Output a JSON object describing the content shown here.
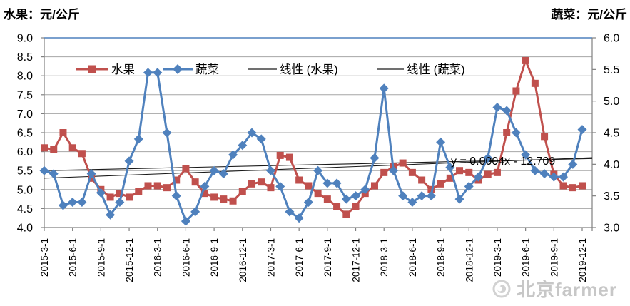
{
  "titles": {
    "left_axis_title": "水果：元/公斤",
    "right_axis_title": "蔬菜：元/公斤"
  },
  "legend": {
    "items": [
      {
        "label": "水果",
        "marker": "square",
        "color": "#C0504D"
      },
      {
        "label": "蔬菜",
        "marker": "diamond",
        "color": "#4F81BD"
      },
      {
        "label": "线性 (水果)",
        "marker": "line",
        "color": "#1a1a1a"
      },
      {
        "label": "线性 (蔬菜)",
        "marker": "line",
        "color": "#1a1a1a"
      }
    ]
  },
  "watermark": {
    "text": "北京farmer",
    "icon": "weibo-eye-icon"
  },
  "colors": {
    "fruit": "#C0504D",
    "vegetable": "#4F81BD",
    "gridline": "#A6A6A6",
    "axis": "#808080",
    "top_border": "#4F81BD",
    "trendline": "#1a1a1a"
  },
  "chart_data": {
    "type": "line",
    "title": "",
    "xlabel": "",
    "ylabel_left": "水果：元/公斤",
    "ylabel_right": "蔬菜：元/公斤",
    "grid": true,
    "legend_position": "top-inside",
    "x": [
      "2015-3",
      "2015-4",
      "2015-5",
      "2015-6",
      "2015-7",
      "2015-8",
      "2015-9",
      "2015-10",
      "2015-11",
      "2015-12",
      "2016-1",
      "2016-2",
      "2016-3",
      "2016-4",
      "2016-5",
      "2016-6",
      "2016-7",
      "2016-8",
      "2016-9",
      "2016-10",
      "2016-11",
      "2016-12",
      "2017-1",
      "2017-2",
      "2017-3",
      "2017-4",
      "2017-5",
      "2017-6",
      "2017-7",
      "2017-8",
      "2017-9",
      "2017-10",
      "2017-11",
      "2017-12",
      "2018-1",
      "2018-2",
      "2018-3",
      "2018-4",
      "2018-5",
      "2018-6",
      "2018-7",
      "2018-8",
      "2018-9",
      "2018-10",
      "2018-11",
      "2018-12",
      "2019-1",
      "2019-2",
      "2019-3",
      "2019-4",
      "2019-5",
      "2019-6",
      "2019-7",
      "2019-8",
      "2019-9",
      "2019-10",
      "2019-11",
      "2019-12"
    ],
    "x_tick_labels": [
      "2015-3-1",
      "2015-6-1",
      "2015-9-1",
      "2015-12-1",
      "2016-3-1",
      "2016-6-1",
      "2016-9-1",
      "2016-12-1",
      "2017-3-1",
      "2017-6-1",
      "2017-9-1",
      "2017-12-1",
      "2018-3-1",
      "2018-6-1",
      "2018-9-1",
      "2018-12-1",
      "2019-3-1",
      "2019-6-1",
      "2019-9-1",
      "2019-12-1"
    ],
    "series": [
      {
        "name": "水果",
        "axis": "left",
        "color": "#C0504D",
        "marker": "square",
        "values": [
          6.1,
          6.05,
          6.5,
          6.1,
          5.95,
          5.3,
          5.0,
          4.8,
          4.9,
          4.8,
          4.95,
          5.1,
          5.1,
          5.05,
          5.25,
          5.55,
          5.2,
          4.9,
          4.8,
          4.75,
          4.7,
          4.95,
          5.15,
          5.2,
          5.05,
          5.9,
          5.85,
          5.25,
          5.1,
          4.9,
          4.75,
          4.55,
          4.35,
          4.55,
          4.9,
          5.1,
          5.45,
          5.6,
          5.7,
          5.45,
          5.25,
          5.0,
          5.15,
          5.3,
          5.5,
          5.45,
          5.25,
          5.4,
          5.45,
          6.5,
          7.6,
          8.4,
          7.8,
          6.4,
          5.4,
          5.1,
          5.05,
          5.1
        ]
      },
      {
        "name": "蔬菜",
        "axis": "right",
        "color": "#4F81BD",
        "marker": "diamond",
        "values": [
          3.9,
          3.85,
          3.35,
          3.4,
          3.4,
          3.85,
          3.55,
          3.2,
          3.4,
          4.05,
          4.4,
          5.45,
          5.45,
          4.5,
          3.5,
          3.1,
          3.25,
          3.65,
          3.9,
          3.85,
          4.15,
          4.3,
          4.5,
          4.4,
          3.9,
          3.65,
          3.25,
          3.15,
          3.4,
          3.9,
          3.7,
          3.7,
          3.45,
          3.5,
          3.6,
          4.1,
          5.2,
          3.9,
          3.5,
          3.4,
          3.5,
          3.5,
          4.35,
          3.95,
          3.45,
          3.65,
          3.8,
          4.1,
          4.9,
          4.85,
          4.5,
          4.15,
          3.9,
          3.85,
          3.8,
          3.8,
          4.0,
          4.55
        ]
      }
    ],
    "trendlines": [
      {
        "name": "线性 (水果)",
        "axis": "left",
        "start_value": 5.3,
        "end_value": 5.84
      },
      {
        "name": "线性 (蔬菜)",
        "axis": "right",
        "start_value": 3.9,
        "end_value": 4.09
      }
    ],
    "annotation": "y = 0.0004x - 12.709",
    "left_axis": {
      "min": 4.0,
      "max": 9.0,
      "step": 0.5,
      "ticks": [
        "9.0",
        "8.5",
        "8.0",
        "7.5",
        "7.0",
        "6.5",
        "6.0",
        "5.5",
        "5.0",
        "4.5",
        "4.0"
      ]
    },
    "right_axis": {
      "min": 3.0,
      "max": 6.0,
      "step": 0.5,
      "ticks": [
        "6.0",
        "5.5",
        "5.0",
        "4.5",
        "4.0",
        "3.5",
        "3.0"
      ]
    }
  }
}
